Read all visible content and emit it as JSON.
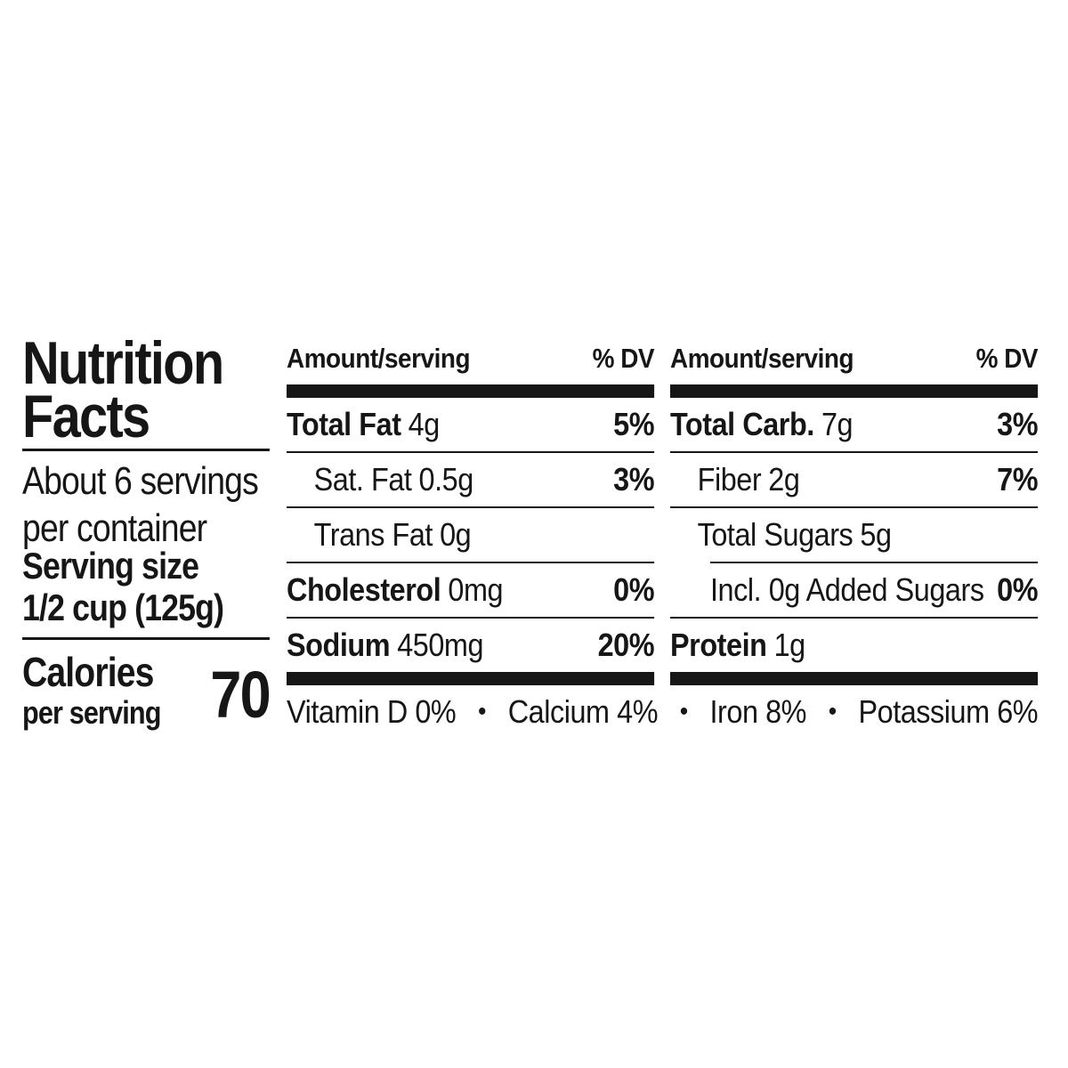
{
  "title": {
    "line1": "Nutrition",
    "line2": "Facts"
  },
  "servings": {
    "line1": "About 6 servings",
    "line2": "per container"
  },
  "serving_size": {
    "label": "Serving size",
    "value": "1/2 cup (125g)"
  },
  "calories": {
    "label": "Calories",
    "sublabel": "per serving",
    "value": "70"
  },
  "columns": [
    {
      "header": {
        "amount": "Amount/serving",
        "dv": "% DV"
      },
      "rows": [
        {
          "label": "Total Fat",
          "amount": "4g",
          "dv": "5%"
        },
        {
          "label": "Sat. Fat",
          "amount": "0.5g",
          "dv": "3%"
        },
        {
          "label": "Trans Fat",
          "amount": "0g",
          "dv": ""
        },
        {
          "label": "Cholesterol",
          "amount": "0mg",
          "dv": "0%"
        },
        {
          "label": "Sodium",
          "amount": "450mg",
          "dv": "20%"
        }
      ]
    },
    {
      "header": {
        "amount": "Amount/serving",
        "dv": "% DV"
      },
      "rows": [
        {
          "label": "Total Carb.",
          "amount": "7g",
          "dv": "3%"
        },
        {
          "label": "Fiber",
          "amount": "2g",
          "dv": "7%"
        },
        {
          "label": "Total Sugars",
          "amount": "5g",
          "dv": ""
        },
        {
          "label": "Incl. 0g Added Sugars",
          "amount": "",
          "dv": "0%"
        },
        {
          "label": "Protein",
          "amount": "1g",
          "dv": ""
        }
      ]
    }
  ],
  "micronutrients": {
    "items": [
      "Vitamin D 0%",
      "Calcium 4%",
      "Iron 8%",
      "Potassium 6%"
    ],
    "separator": "•"
  },
  "colors": {
    "ink": "#161616",
    "background": "#ffffff"
  }
}
